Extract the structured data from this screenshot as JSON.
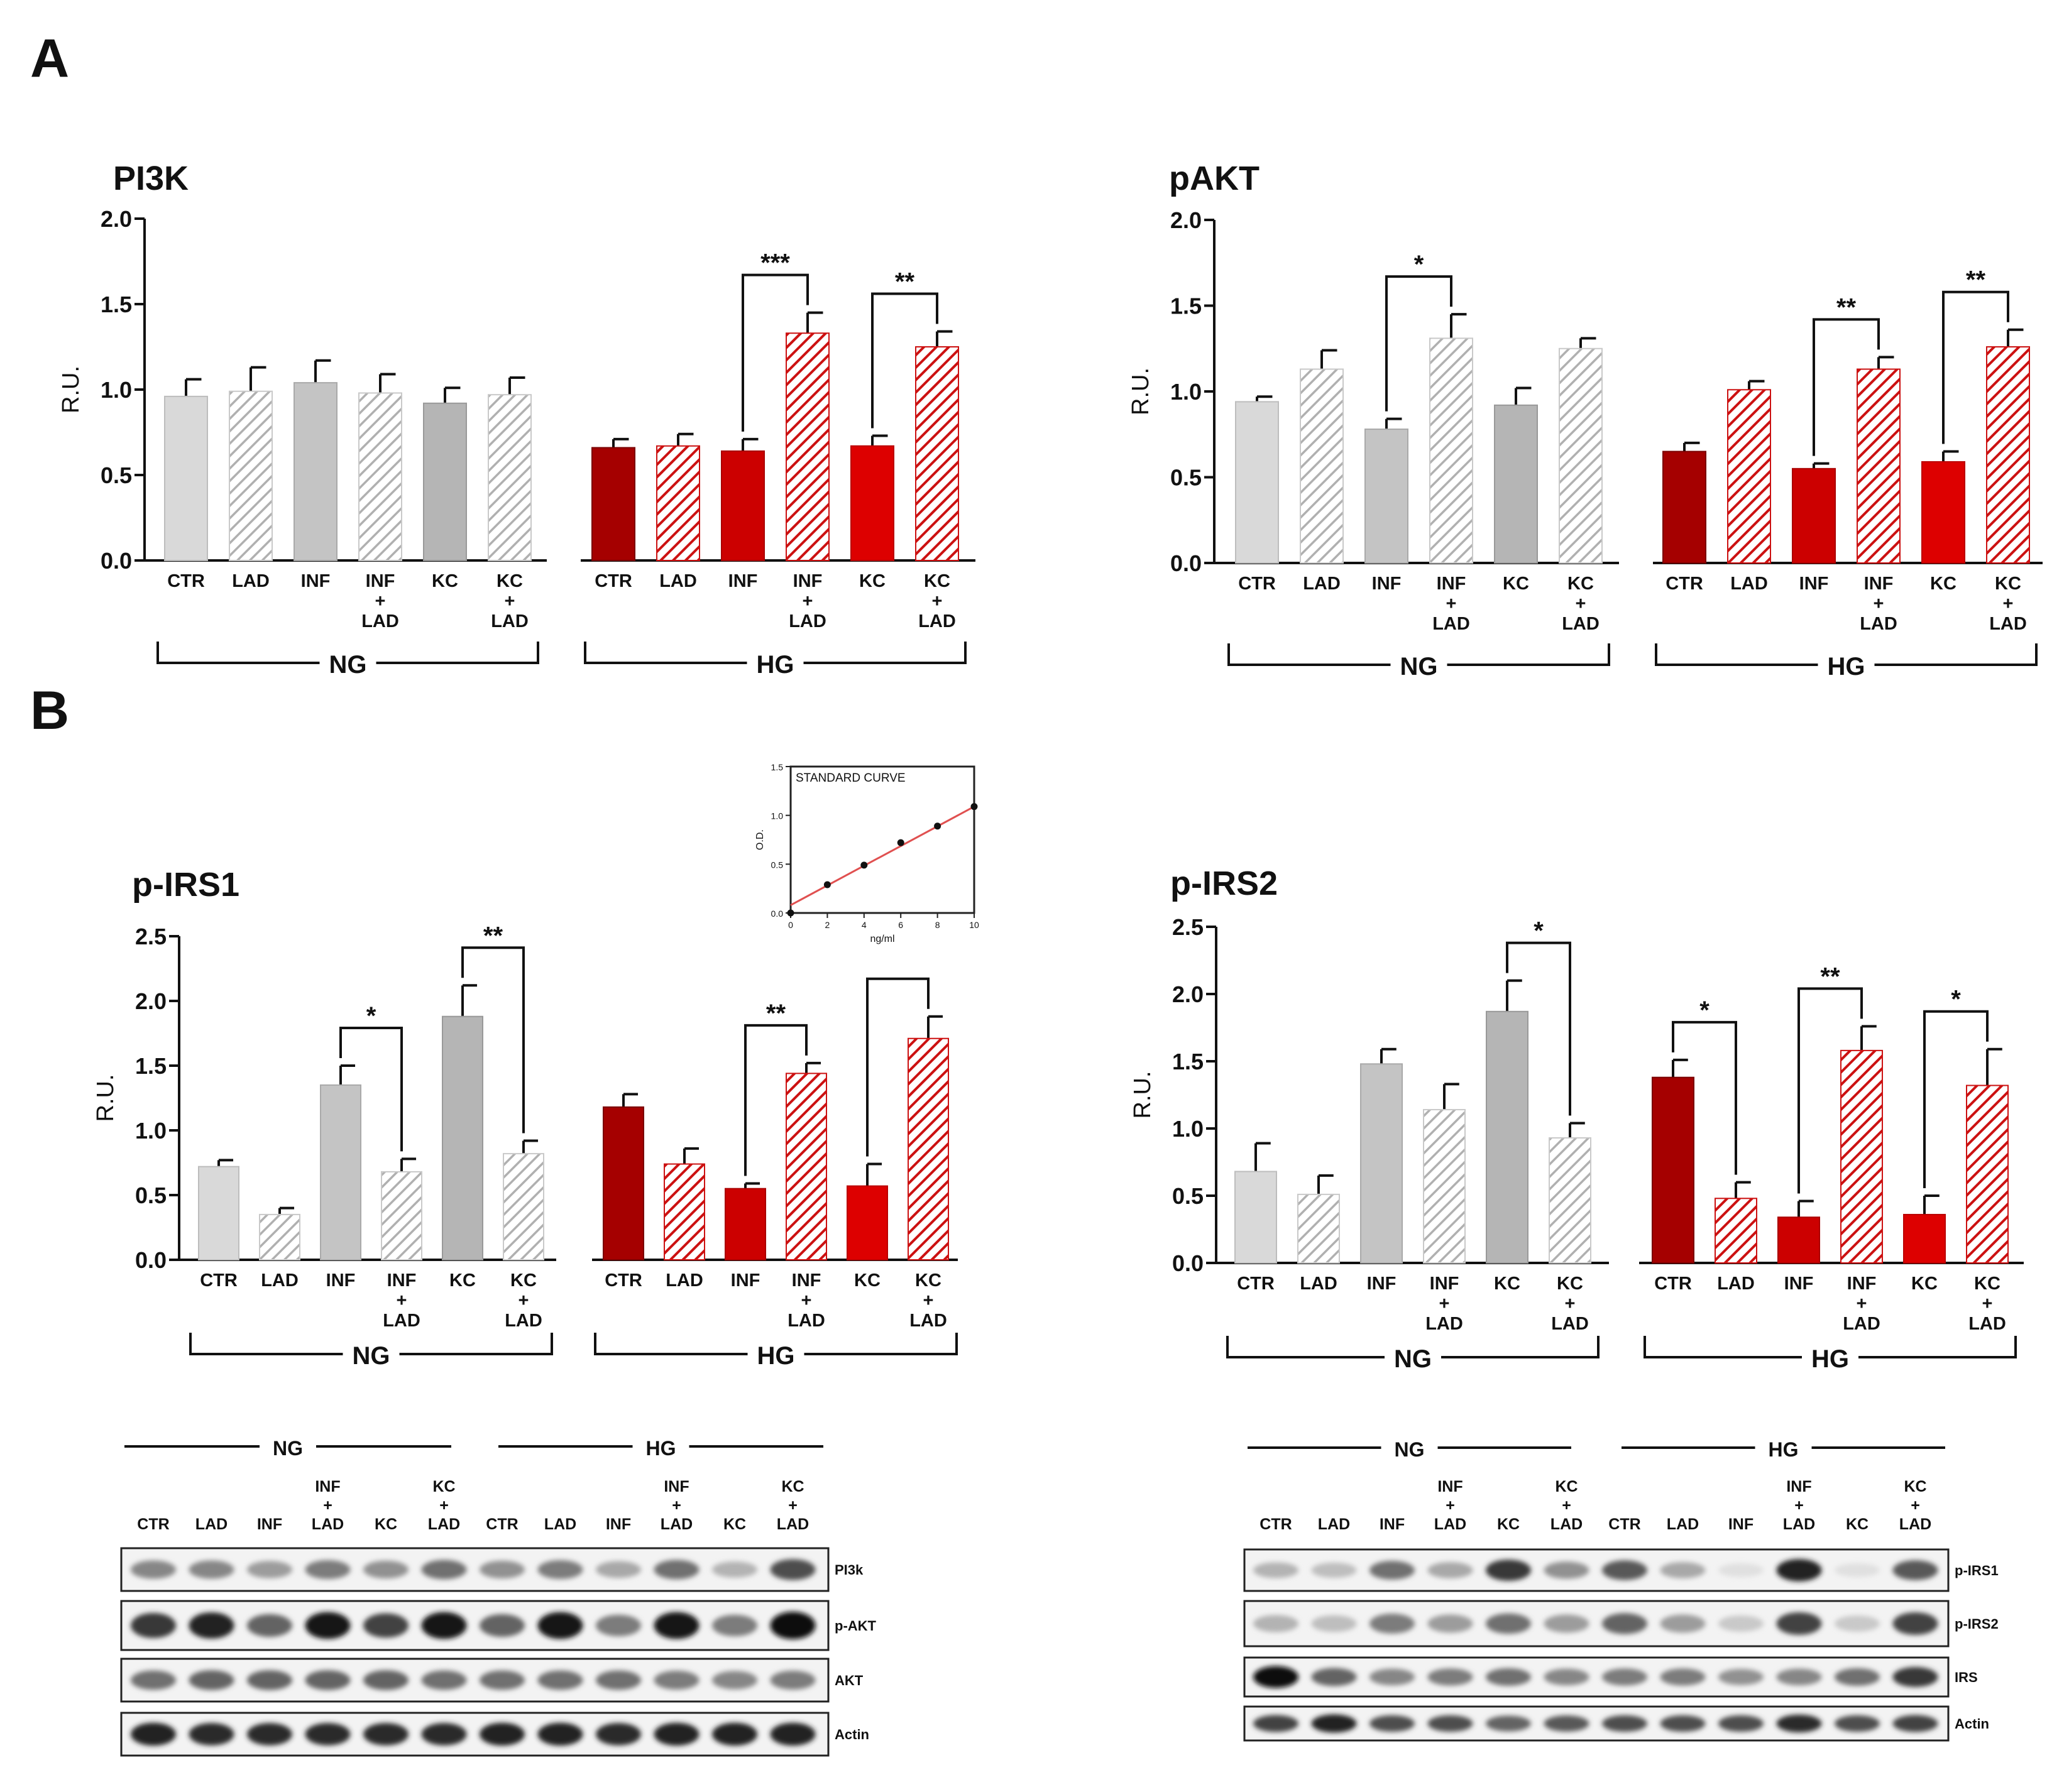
{
  "panel_labels": {
    "a": "A",
    "b": "B"
  },
  "group_labels": {
    "ng": "NG",
    "hg": "HG"
  },
  "categories": [
    "CTR",
    "LAD",
    "INF",
    "INF\n+\nLAD",
    "KC",
    "KC\n+\nLAD",
    "CTR",
    "LAD",
    "INF",
    "INF\n+\nLAD",
    "KC",
    "KC\n+\nLAD"
  ],
  "colors": {
    "ng_ctr": "#d9d9d9",
    "ng_inf": "#c4c4c4",
    "ng_kc": "#b5b5b5",
    "hg_ctr": "#a50000",
    "hg_inf": "#cc0000",
    "hg_kc": "#dd0000",
    "hatch_gray": "#b0b0b0",
    "hatch_red": "#cc1111",
    "fit_line": "#e05050"
  },
  "chart_data": [
    {
      "type": "bar",
      "title": "PI3K",
      "xlabel": "",
      "ylabel": "R.U.",
      "ylim": [
        0,
        2.0
      ],
      "yticks": [
        "0.0",
        "0.5",
        "1.0",
        "1.5",
        "2.0"
      ],
      "values": [
        0.96,
        0.99,
        1.04,
        0.98,
        0.92,
        0.97,
        0.66,
        0.67,
        0.64,
        1.33,
        0.67,
        1.25
      ],
      "errors": [
        0.1,
        0.14,
        0.13,
        0.11,
        0.09,
        0.1,
        0.05,
        0.07,
        0.07,
        0.12,
        0.06,
        0.09
      ],
      "significance": [
        {
          "from": 8,
          "to": 9,
          "label": "***"
        },
        {
          "from": 10,
          "to": 11,
          "label": "**"
        }
      ]
    },
    {
      "type": "bar",
      "title": "pAKT",
      "xlabel": "",
      "ylabel": "R.U.",
      "ylim": [
        0,
        2.0
      ],
      "yticks": [
        "0.0",
        "0.5",
        "1.0",
        "1.5",
        "2.0"
      ],
      "values": [
        0.94,
        1.13,
        0.78,
        1.31,
        0.92,
        1.25,
        0.65,
        1.01,
        0.55,
        1.13,
        0.59,
        1.26
      ],
      "errors": [
        0.03,
        0.11,
        0.06,
        0.14,
        0.1,
        0.06,
        0.05,
        0.05,
        0.03,
        0.07,
        0.06,
        0.1
      ],
      "significance": [
        {
          "from": 2,
          "to": 3,
          "label": "*"
        },
        {
          "from": 8,
          "to": 9,
          "label": "**"
        },
        {
          "from": 10,
          "to": 11,
          "label": "**"
        }
      ]
    },
    {
      "type": "bar",
      "title": "p-IRS1",
      "xlabel": "",
      "ylabel": "R.U.",
      "ylim": [
        0,
        2.5
      ],
      "yticks": [
        "0.0",
        "0.5",
        "1.0",
        "1.5",
        "2.0",
        "2.5"
      ],
      "values": [
        0.72,
        0.35,
        1.35,
        0.68,
        1.88,
        0.82,
        1.18,
        0.74,
        0.55,
        1.44,
        0.57,
        1.71
      ],
      "errors": [
        0.05,
        0.05,
        0.15,
        0.1,
        0.24,
        0.1,
        0.1,
        0.12,
        0.04,
        0.08,
        0.17,
        0.17
      ],
      "significance": [
        {
          "from": 2,
          "to": 3,
          "label": "*"
        },
        {
          "from": 4,
          "to": 5,
          "label": "**"
        },
        {
          "from": 8,
          "to": 9,
          "label": "**"
        },
        {
          "from": 10,
          "to": 11,
          "label": ""
        }
      ]
    },
    {
      "type": "bar",
      "title": "p-IRS2",
      "xlabel": "",
      "ylabel": "R.U.",
      "ylim": [
        0,
        2.5
      ],
      "yticks": [
        "0.0",
        "0.5",
        "1.0",
        "1.5",
        "2.0",
        "2.5"
      ],
      "values": [
        0.68,
        0.51,
        1.48,
        1.14,
        1.87,
        0.93,
        1.38,
        0.48,
        0.34,
        1.58,
        0.36,
        1.32
      ],
      "errors": [
        0.21,
        0.14,
        0.11,
        0.19,
        0.23,
        0.11,
        0.13,
        0.12,
        0.12,
        0.18,
        0.14,
        0.27
      ],
      "significance": [
        {
          "from": 4,
          "to": 5,
          "label": "*"
        },
        {
          "from": 6,
          "to": 7,
          "label": "*"
        },
        {
          "from": 8,
          "to": 9,
          "label": "**"
        },
        {
          "from": 10,
          "to": 11,
          "label": "*"
        }
      ]
    },
    {
      "type": "scatter",
      "title": "STANDARD CURVE",
      "xlabel": "ng/ml",
      "ylabel": "O.D.",
      "xlim": [
        0,
        10
      ],
      "ylim": [
        0,
        1.5
      ],
      "xticks": [
        "0",
        "2",
        "4",
        "6",
        "8",
        "10"
      ],
      "yticks": [
        "0.0",
        "0.5",
        "1.0",
        "1.5"
      ],
      "x": [
        0,
        2,
        4,
        6,
        8,
        10
      ],
      "y": [
        0.0,
        0.29,
        0.49,
        0.72,
        0.89,
        1.09
      ],
      "fit": {
        "x": [
          0,
          10
        ],
        "y": [
          0.08,
          1.09
        ]
      }
    }
  ],
  "blots": [
    {
      "lane_labels": [
        "CTR",
        "LAD",
        "INF",
        "INF\n+\nLAD",
        "KC",
        "KC\n+\nLAD",
        "CTR",
        "LAD",
        "INF",
        "INF\n+\nLAD",
        "KC",
        "KC\n+\nLAD"
      ],
      "rows": [
        {
          "label": "PI3k",
          "intensity": [
            0.45,
            0.45,
            0.35,
            0.5,
            0.4,
            0.55,
            0.4,
            0.5,
            0.3,
            0.55,
            0.25,
            0.7
          ]
        },
        {
          "label": "p-AKT",
          "intensity": [
            0.8,
            0.9,
            0.6,
            0.95,
            0.75,
            0.95,
            0.6,
            0.95,
            0.5,
            0.95,
            0.5,
            1.0
          ]
        },
        {
          "label": "AKT",
          "intensity": [
            0.55,
            0.6,
            0.6,
            0.6,
            0.6,
            0.55,
            0.55,
            0.55,
            0.55,
            0.5,
            0.45,
            0.5
          ]
        },
        {
          "label": "Actin",
          "intensity": [
            0.9,
            0.85,
            0.85,
            0.85,
            0.85,
            0.85,
            0.9,
            0.9,
            0.85,
            0.9,
            0.9,
            0.9
          ]
        }
      ]
    },
    {
      "lane_labels": [
        "CTR",
        "LAD",
        "INF",
        "INF\n+\nLAD",
        "KC",
        "KC\n+\nLAD",
        "CTR",
        "LAD",
        "INF",
        "INF\n+\nLAD",
        "KC",
        "KC\n+\nLAD"
      ],
      "rows": [
        {
          "label": "p-IRS1",
          "intensity": [
            0.25,
            0.2,
            0.55,
            0.3,
            0.8,
            0.4,
            0.65,
            0.3,
            0.05,
            0.9,
            0.05,
            0.65
          ]
        },
        {
          "label": "p-IRS2",
          "intensity": [
            0.25,
            0.2,
            0.5,
            0.35,
            0.55,
            0.35,
            0.6,
            0.35,
            0.15,
            0.75,
            0.15,
            0.75
          ]
        },
        {
          "label": "IRS",
          "intensity": [
            1.0,
            0.6,
            0.45,
            0.5,
            0.55,
            0.45,
            0.5,
            0.5,
            0.4,
            0.45,
            0.55,
            0.8
          ]
        },
        {
          "label": "Actin",
          "intensity": [
            0.75,
            0.9,
            0.7,
            0.7,
            0.6,
            0.65,
            0.7,
            0.7,
            0.7,
            0.85,
            0.7,
            0.75
          ]
        }
      ]
    }
  ]
}
